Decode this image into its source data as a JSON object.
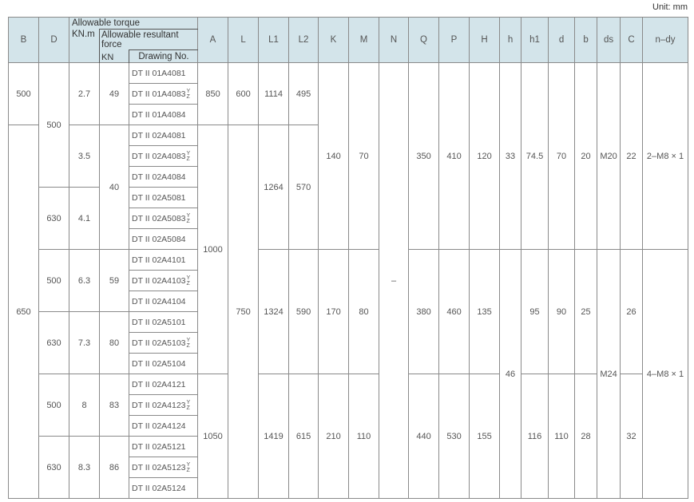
{
  "unit": "Unit: mm",
  "header": {
    "B": "B",
    "D": "D",
    "torque_label": "Allowable torque",
    "torque_unit": "KN.m",
    "force_label": "Allowable resultant force",
    "force_unit": "KN",
    "drawing": "Drawing No.",
    "rest": [
      "A",
      "L",
      "L1",
      "L2",
      "K",
      "M",
      "N",
      "Q",
      "P",
      "H",
      "h",
      "h1",
      "d",
      "b",
      "ds",
      "C",
      "n–dy"
    ]
  },
  "drawings": [
    {
      "no": "DT II 01A4081"
    },
    {
      "no": "DT II 01A4083",
      "sup": "Y",
      "sub": "Z"
    },
    {
      "no": "DT II 01A4084"
    },
    {
      "no": "DT II 02A4081"
    },
    {
      "no": "DT II 02A4083",
      "sup": "Y",
      "sub": "Z"
    },
    {
      "no": "DT II 02A4084"
    },
    {
      "no": "DT II 02A5081"
    },
    {
      "no": "DT II 02A5083",
      "sup": "Y",
      "sub": "Z"
    },
    {
      "no": "DT II 02A5084"
    },
    {
      "no": "DT II 02A4101"
    },
    {
      "no": "DT II 02A4103",
      "sup": "Y",
      "sub": "Z"
    },
    {
      "no": "DT II 02A4104"
    },
    {
      "no": "DT II 02A5101"
    },
    {
      "no": "DT II 02A5103",
      "sup": "Y",
      "sub": "Z"
    },
    {
      "no": "DT II 02A5104"
    },
    {
      "no": "DT II 02A4121"
    },
    {
      "no": "DT II 02A4123",
      "sup": "Y",
      "sub": "Z"
    },
    {
      "no": "DT II 02A4124"
    },
    {
      "no": "DT II 02A5121"
    },
    {
      "no": "DT II 02A5123",
      "sup": "Y",
      "sub": "Z"
    },
    {
      "no": "DT II 02A5124"
    }
  ],
  "columns": {
    "B": [
      [
        "500",
        3
      ],
      [
        "650",
        18
      ]
    ],
    "D": [
      [
        "500",
        6
      ],
      [
        "630",
        3
      ],
      [
        "500",
        3
      ],
      [
        "630",
        3
      ],
      [
        "500",
        3
      ],
      [
        "630",
        3
      ]
    ],
    "torque": [
      [
        "2.7",
        3
      ],
      [
        "3.5",
        3
      ],
      [
        "4.1",
        3
      ],
      [
        "6.3",
        3
      ],
      [
        "7.3",
        3
      ],
      [
        "8",
        3
      ],
      [
        "8.3",
        3
      ]
    ],
    "force": [
      [
        "49",
        3
      ],
      [
        "40",
        6
      ],
      [
        "59",
        3
      ],
      [
        "80",
        3
      ],
      [
        "83",
        3
      ],
      [
        "86",
        3
      ]
    ],
    "A": [
      [
        "850",
        3
      ],
      [
        "1000",
        12
      ],
      [
        "1050",
        6
      ]
    ],
    "L": [
      [
        "600",
        3
      ],
      [
        "750",
        18
      ]
    ],
    "L1": [
      [
        "1114",
        3
      ],
      [
        "1264",
        6
      ],
      [
        "1324",
        6
      ],
      [
        "1419",
        6
      ]
    ],
    "L2": [
      [
        "495",
        3
      ],
      [
        "570",
        6
      ],
      [
        "590",
        6
      ],
      [
        "615",
        6
      ]
    ],
    "K": [
      [
        "140",
        9
      ],
      [
        "170",
        6
      ],
      [
        "210",
        6
      ]
    ],
    "M": [
      [
        "70",
        9
      ],
      [
        "80",
        6
      ],
      [
        "110",
        6
      ]
    ],
    "N": [
      [
        "–",
        21
      ]
    ],
    "Q": [
      [
        "350",
        9
      ],
      [
        "380",
        6
      ],
      [
        "440",
        6
      ]
    ],
    "P": [
      [
        "410",
        9
      ],
      [
        "460",
        6
      ],
      [
        "530",
        6
      ]
    ],
    "H": [
      [
        "120",
        9
      ],
      [
        "135",
        6
      ],
      [
        "155",
        6
      ]
    ],
    "h": [
      [
        "33",
        9
      ],
      [
        "46",
        12
      ]
    ],
    "h1": [
      [
        "74.5",
        9
      ],
      [
        "95",
        6
      ],
      [
        "116",
        6
      ]
    ],
    "d": [
      [
        "70",
        9
      ],
      [
        "90",
        6
      ],
      [
        "110",
        6
      ]
    ],
    "b": [
      [
        "20",
        9
      ],
      [
        "25",
        6
      ],
      [
        "28",
        6
      ]
    ],
    "ds": [
      [
        "M20",
        9
      ],
      [
        "M24",
        12
      ]
    ],
    "C": [
      [
        "22",
        9
      ],
      [
        "26",
        6
      ],
      [
        "32",
        6
      ]
    ],
    "n-dy": [
      [
        "2–M8 × 1",
        9
      ],
      [
        "4–M8 × 1",
        12
      ]
    ]
  }
}
